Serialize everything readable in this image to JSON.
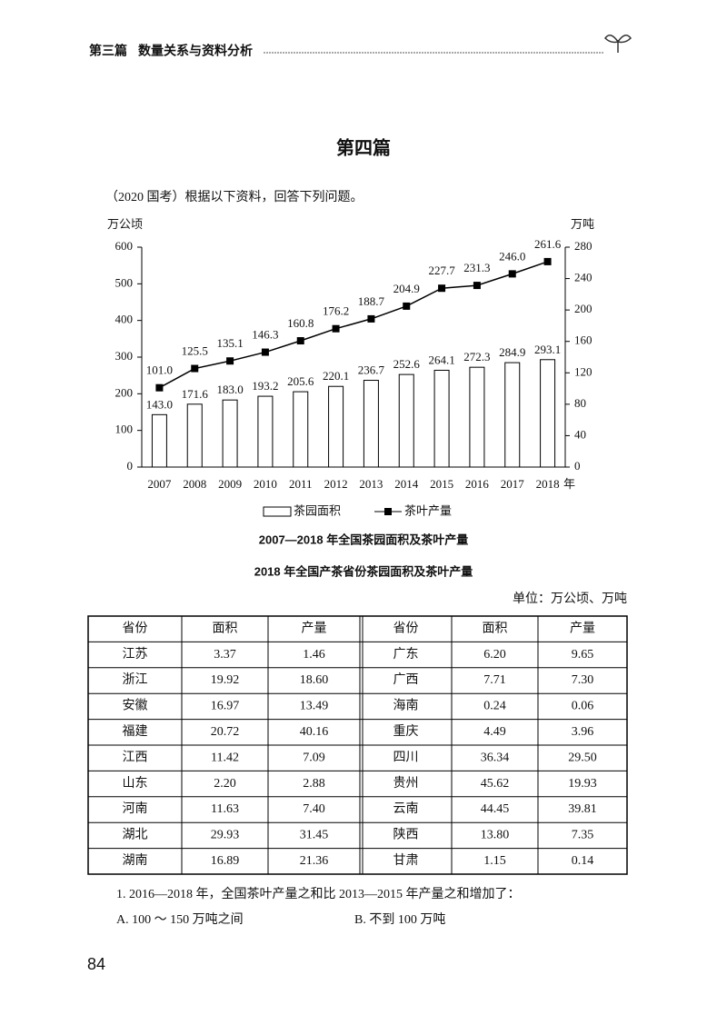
{
  "header": {
    "section": "第三篇",
    "title": "数量关系与资料分析"
  },
  "page_title": "第四篇",
  "intro": "（2020 国考）根据以下资料，回答下列问题。",
  "chart_data": {
    "type": "combo",
    "title": "2007—2018 年全国茶园面积及茶叶产量",
    "ylabel": "万公顷",
    "y2label": "万吨",
    "xlabel": "年",
    "categories": [
      "2007",
      "2008",
      "2009",
      "2010",
      "2011",
      "2012",
      "2013",
      "2014",
      "2015",
      "2016",
      "2017",
      "2018"
    ],
    "series": [
      {
        "name": "茶园面积",
        "kind": "bar",
        "color": "#ffffff",
        "axis": "y",
        "values": [
          143.0,
          171.6,
          183.0,
          193.2,
          205.6,
          220.1,
          236.7,
          252.6,
          264.1,
          272.3,
          284.9,
          293.1
        ],
        "value_labels": [
          "143.0",
          "171.6",
          "183.0",
          "193.2",
          "205.6",
          "220.1",
          "236.7",
          "252.6",
          "264.1",
          "272.3",
          "284.9",
          "293.1"
        ]
      },
      {
        "name": "茶叶产量",
        "kind": "line",
        "color": "#000000",
        "axis": "y2",
        "values": [
          101.0,
          125.5,
          135.1,
          146.3,
          160.8,
          176.2,
          188.7,
          204.9,
          227.7,
          231.3,
          246.0,
          261.6
        ],
        "value_labels": [
          "101.0",
          "125.5",
          "135.1",
          "146.3",
          "160.8",
          "176.2",
          "188.7",
          "204.9",
          "227.7",
          "231.3",
          "246.0",
          "261.6"
        ]
      }
    ],
    "ylim": [
      0,
      600
    ],
    "yticks": [
      0,
      100,
      200,
      300,
      400,
      500,
      600
    ],
    "y2lim": [
      0,
      280
    ],
    "y2ticks": [
      0,
      40,
      80,
      120,
      160,
      200,
      240,
      280
    ]
  },
  "table": {
    "title": "2018 年全国产茶省份茶园面积及茶叶产量",
    "unit": "单位：万公顷、万吨",
    "header": [
      "省份",
      "面积",
      "产量",
      "省份",
      "面积",
      "产量"
    ],
    "rows": [
      [
        "江苏",
        "3.37",
        "1.46",
        "广东",
        "6.20",
        "9.65"
      ],
      [
        "浙江",
        "19.92",
        "18.60",
        "广西",
        "7.71",
        "7.30"
      ],
      [
        "安徽",
        "16.97",
        "13.49",
        "海南",
        "0.24",
        "0.06"
      ],
      [
        "福建",
        "20.72",
        "40.16",
        "重庆",
        "4.49",
        "3.96"
      ],
      [
        "江西",
        "11.42",
        "7.09",
        "四川",
        "36.34",
        "29.50"
      ],
      [
        "山东",
        "2.20",
        "2.88",
        "贵州",
        "45.62",
        "19.93"
      ],
      [
        "河南",
        "11.63",
        "7.40",
        "云南",
        "44.45",
        "39.81"
      ],
      [
        "湖北",
        "29.93",
        "31.45",
        "陕西",
        "13.80",
        "7.35"
      ],
      [
        "湖南",
        "16.89",
        "21.36",
        "甘肃",
        "1.15",
        "0.14"
      ]
    ]
  },
  "question": {
    "stem": "1. 2016—2018 年，全国茶叶产量之和比 2013—2015 年产量之和增加了：",
    "options": [
      "A. 100 ～ 150 万吨之间",
      "B. 不到 100 万吨"
    ]
  },
  "page_number": "84"
}
